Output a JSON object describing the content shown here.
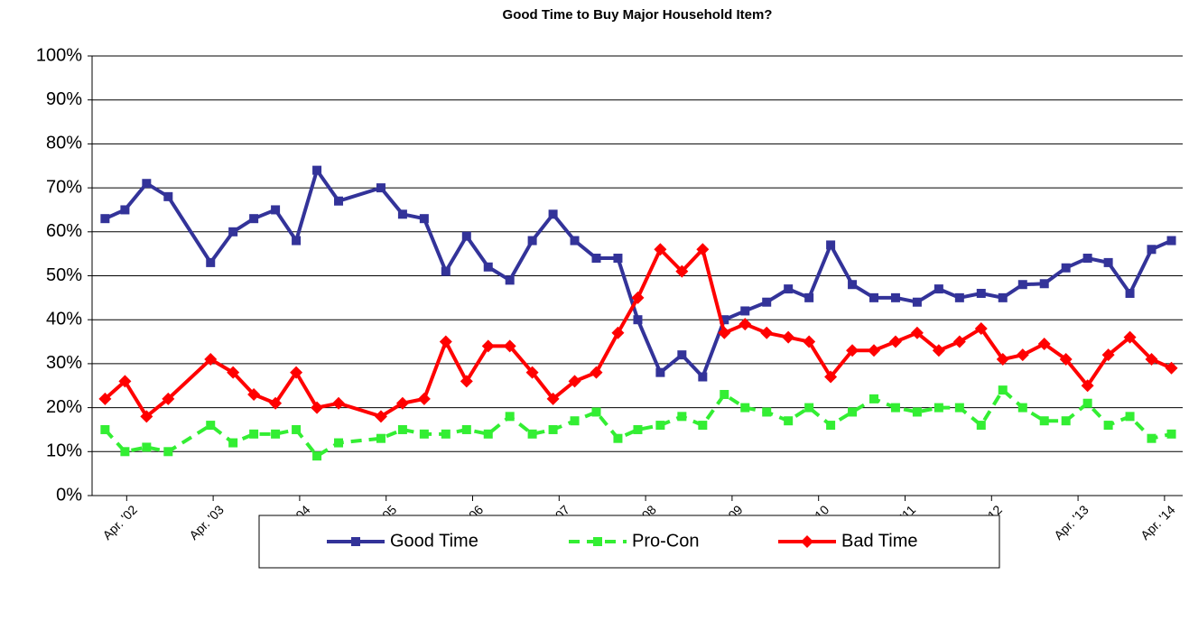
{
  "chart_data": {
    "type": "line",
    "title": "Good Time to Buy Major Household Item?",
    "x": [
      2002.0,
      2002.23,
      2002.48,
      2002.73,
      2003.22,
      2003.48,
      2003.72,
      2003.97,
      2004.21,
      2004.45,
      2004.7,
      2005.19,
      2005.44,
      2005.69,
      2005.94,
      2006.18,
      2006.43,
      2006.68,
      2006.94,
      2007.18,
      2007.43,
      2007.68,
      2007.93,
      2008.16,
      2008.42,
      2008.67,
      2008.91,
      2009.16,
      2009.4,
      2009.65,
      2009.9,
      2010.14,
      2010.39,
      2010.64,
      2010.89,
      2011.14,
      2011.39,
      2011.64,
      2011.88,
      2012.13,
      2012.38,
      2012.61,
      2012.86,
      2013.11,
      2013.36,
      2013.6,
      2013.85,
      2014.1,
      2014.33
    ],
    "series": [
      {
        "name": "Good Time",
        "color": "#333399",
        "marker": "square",
        "dashed": false,
        "values": [
          63,
          65,
          71,
          68,
          53,
          60,
          63,
          65,
          58,
          74,
          67,
          70,
          64,
          63,
          51,
          59,
          52,
          49,
          58,
          64,
          58,
          54,
          54,
          40,
          28,
          32,
          27,
          40,
          42,
          44,
          47,
          45,
          57,
          48,
          45,
          45,
          44,
          47,
          45,
          46,
          45,
          48,
          48.2,
          51.8,
          54,
          53,
          46,
          56,
          58
        ]
      },
      {
        "name": "Pro-Con",
        "color": "#33ee33",
        "marker": "square",
        "dashed": true,
        "values": [
          15,
          10,
          11,
          10,
          16,
          12,
          14,
          14,
          15,
          9,
          12,
          13,
          15,
          14,
          14,
          15,
          14,
          18,
          14,
          15,
          17,
          19,
          13,
          15,
          16,
          18,
          16,
          23,
          20,
          19,
          17,
          20,
          16,
          19,
          22,
          20,
          19,
          20,
          20,
          16,
          24,
          20,
          17,
          17,
          21,
          16,
          18,
          13,
          14
        ]
      },
      {
        "name": "Bad Time",
        "color": "#ff0000",
        "marker": "diamond",
        "dashed": false,
        "values": [
          22,
          26,
          18,
          22,
          31,
          28,
          23,
          21,
          28,
          20,
          21,
          18,
          21,
          22,
          35,
          26,
          34,
          34,
          28,
          22,
          26,
          28,
          37,
          45,
          56,
          51,
          56,
          37,
          39,
          37,
          36,
          35,
          27,
          33,
          33,
          35,
          37,
          33,
          35,
          38,
          31,
          32,
          34.5,
          31,
          25,
          32,
          36,
          31,
          29
        ]
      }
    ],
    "xlim": [
      2001.85,
      2014.46
    ],
    "xticks": [
      {
        "value": 2002.25,
        "label": "Apr. '02"
      },
      {
        "value": 2003.25,
        "label": "Apr. '03"
      },
      {
        "value": 2004.25,
        "label": "Apr. '04"
      },
      {
        "value": 2005.25,
        "label": "Apr. '05"
      },
      {
        "value": 2006.25,
        "label": "Apr. '06"
      },
      {
        "value": 2007.25,
        "label": "Apr. '07"
      },
      {
        "value": 2008.25,
        "label": "Apr. '08"
      },
      {
        "value": 2009.25,
        "label": "Apr. '09"
      },
      {
        "value": 2010.25,
        "label": "Apr. '10"
      },
      {
        "value": 2011.25,
        "label": "Apr. '11"
      },
      {
        "value": 2012.25,
        "label": "Apr. '12"
      },
      {
        "value": 2013.25,
        "label": "Apr. '13"
      },
      {
        "value": 2014.25,
        "label": "Apr. '14"
      }
    ],
    "ylim": [
      0,
      100
    ],
    "yticks": [
      {
        "value": 0,
        "label": "0%"
      },
      {
        "value": 10,
        "label": "10%"
      },
      {
        "value": 20,
        "label": "20%"
      },
      {
        "value": 30,
        "label": "30%"
      },
      {
        "value": 40,
        "label": "40%"
      },
      {
        "value": 50,
        "label": "50%"
      },
      {
        "value": 60,
        "label": "60%"
      },
      {
        "value": 70,
        "label": "70%"
      },
      {
        "value": 80,
        "label": "80%"
      },
      {
        "value": 90,
        "label": "90%"
      },
      {
        "value": 100,
        "label": "100%"
      }
    ],
    "grid": true,
    "legend": "bottom"
  }
}
